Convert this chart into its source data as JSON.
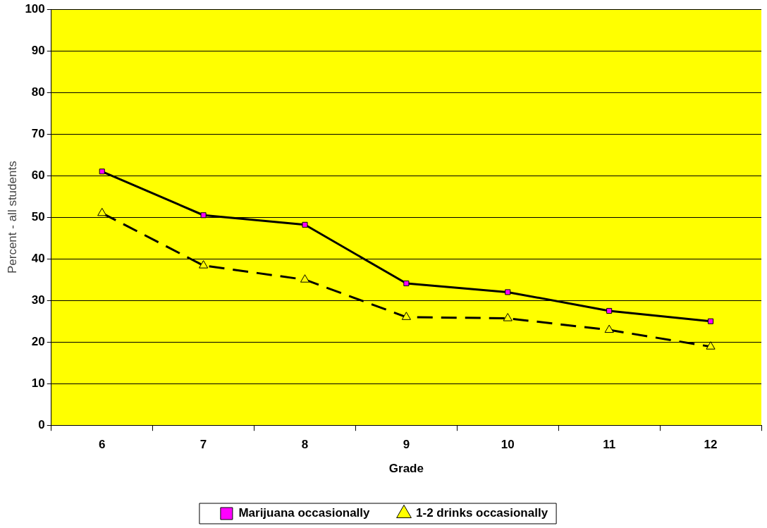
{
  "chart_data": {
    "type": "line",
    "xlabel": "Grade",
    "ylabel": "Percent - all students",
    "categories": [
      "6",
      "7",
      "8",
      "9",
      "10",
      "11",
      "12"
    ],
    "series": [
      {
        "name": "Marijuana occasionally",
        "color": "#ff00ff",
        "marker": "square",
        "line_style": "solid",
        "values": [
          61,
          50.5,
          48.2,
          34.1,
          32,
          27.5,
          25
        ]
      },
      {
        "name": "1-2 drinks occasionally",
        "color": "#ffff00",
        "marker": "triangle",
        "line_style": "dashed",
        "values": [
          51,
          38.4,
          35,
          26,
          25.7,
          22.9,
          18.9
        ]
      }
    ],
    "ylim": [
      0,
      100
    ],
    "yticks": [
      0,
      10,
      20,
      30,
      40,
      50,
      60,
      70,
      80,
      90,
      100
    ],
    "grid": "y",
    "legend": "bottom"
  }
}
